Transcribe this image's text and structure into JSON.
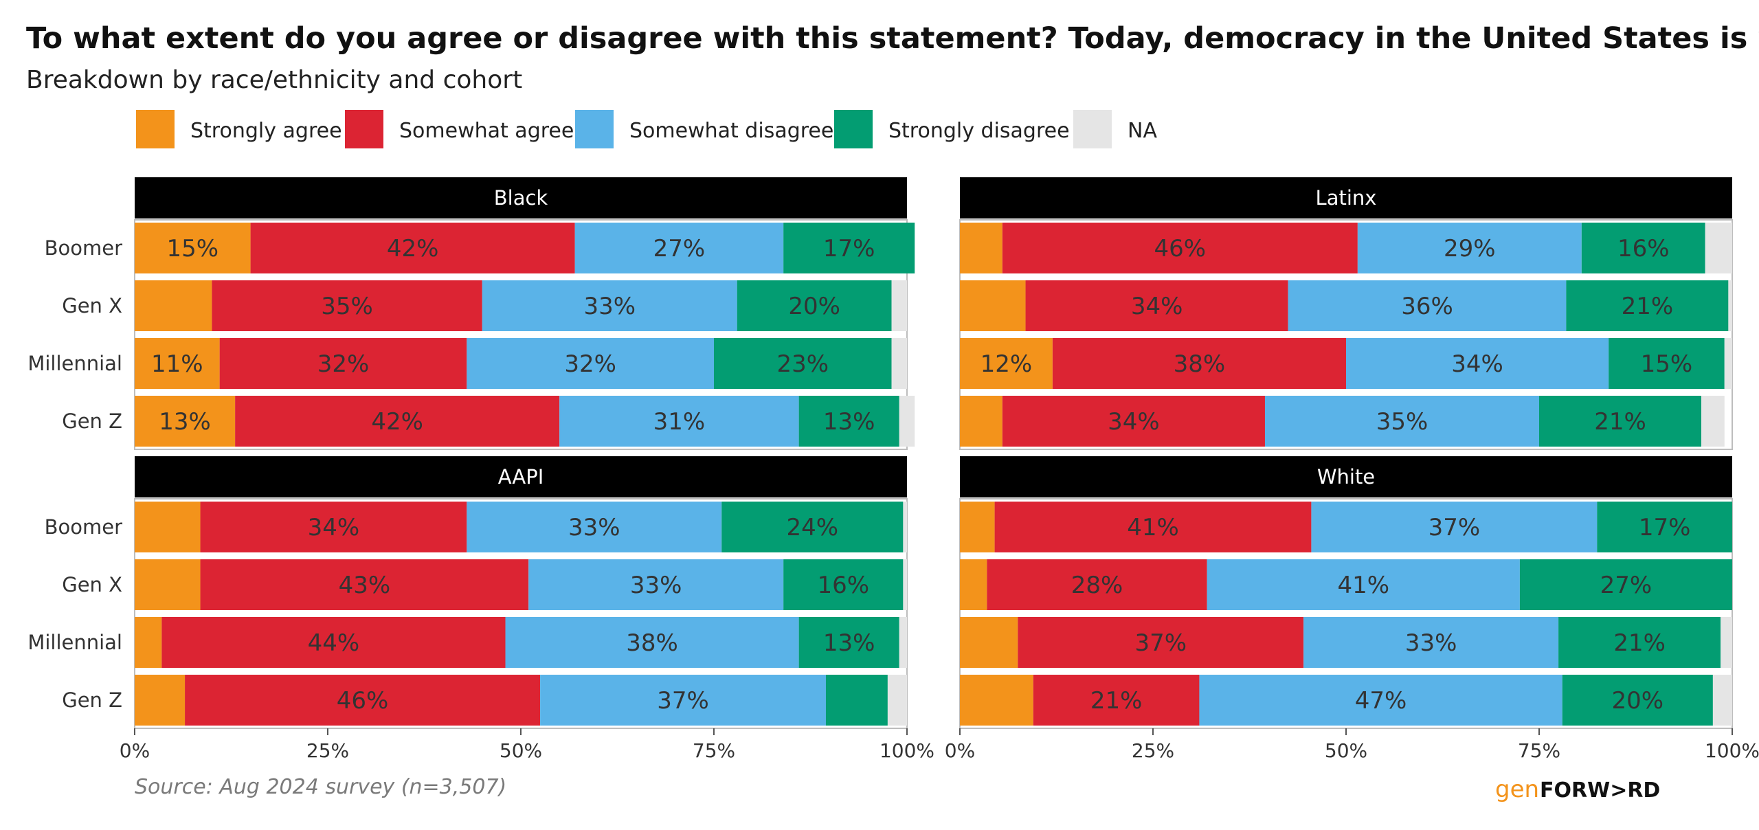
{
  "title": "To what extent do you agree or disagree with this statement? Today, democracy in the United States is working.",
  "subtitle": "Breakdown by race/ethnicity and cohort",
  "caption": "Source: Aug 2024 survey (n=3,507)",
  "logo": {
    "gen": "gen",
    "forward": "FORW>RD"
  },
  "legend": [
    {
      "label": "Strongly agree",
      "color": "#f3931b"
    },
    {
      "label": "Somewhat agree",
      "color": "#dc2433"
    },
    {
      "label": "Somewhat disagree",
      "color": "#5ab3e8"
    },
    {
      "label": "Strongly disagree",
      "color": "#039d72"
    },
    {
      "label": "NA",
      "color": "#e5e5e5"
    }
  ],
  "chart_data": {
    "type": "bar",
    "orientation": "horizontal",
    "stacked": true,
    "xlim": [
      0,
      100
    ],
    "xticks": [
      "0%",
      "25%",
      "50%",
      "75%",
      "100%"
    ],
    "categories": [
      "Boomer",
      "Gen X",
      "Millennial",
      "Gen Z"
    ],
    "series_names": [
      "Strongly agree",
      "Somewhat agree",
      "Somewhat disagree",
      "Strongly disagree",
      "NA"
    ],
    "facets": [
      {
        "name": "Black",
        "values": [
          [
            15,
            42,
            27,
            17,
            0
          ],
          [
            10,
            35,
            33,
            20,
            2
          ],
          [
            11,
            32,
            32,
            23,
            2
          ],
          [
            13,
            42,
            31,
            13,
            2
          ]
        ],
        "labels": [
          [
            "15%",
            "42%",
            "27%",
            "17%",
            ""
          ],
          [
            "",
            "35%",
            "33%",
            "20%",
            ""
          ],
          [
            "11%",
            "32%",
            "32%",
            "23%",
            ""
          ],
          [
            "13%",
            "42%",
            "31%",
            "13%",
            ""
          ]
        ]
      },
      {
        "name": "Latinx",
        "values": [
          [
            5.5,
            46,
            29,
            16,
            3.5
          ],
          [
            8.5,
            34,
            36,
            21,
            0.5
          ],
          [
            12,
            38,
            34,
            15,
            1
          ],
          [
            5.5,
            34,
            35.5,
            21,
            3
          ]
        ],
        "labels": [
          [
            "",
            "46%",
            "29%",
            "16%",
            ""
          ],
          [
            "",
            "34%",
            "36%",
            "21%",
            ""
          ],
          [
            "12%",
            "38%",
            "34%",
            "15%",
            ""
          ],
          [
            "",
            "34%",
            "35%",
            "21%",
            ""
          ]
        ]
      },
      {
        "name": "AAPI",
        "values": [
          [
            8.5,
            34.5,
            33,
            23.5,
            0.5
          ],
          [
            8.5,
            42.5,
            33,
            15.5,
            0.5
          ],
          [
            3.5,
            44.5,
            38,
            13,
            1
          ],
          [
            6.5,
            46,
            37,
            8,
            2.5
          ]
        ],
        "labels": [
          [
            "",
            "34%",
            "33%",
            "24%",
            ""
          ],
          [
            "",
            "43%",
            "33%",
            "16%",
            ""
          ],
          [
            "",
            "44%",
            "38%",
            "13%",
            ""
          ],
          [
            "",
            "46%",
            "37%",
            "",
            ""
          ]
        ]
      },
      {
        "name": "White",
        "values": [
          [
            4.5,
            41,
            37,
            17.5,
            0
          ],
          [
            3.5,
            28.5,
            40.5,
            27.5,
            0
          ],
          [
            7.5,
            37,
            33,
            21,
            1.5
          ],
          [
            9.5,
            21.5,
            47,
            19.5,
            2.5
          ]
        ],
        "labels": [
          [
            "",
            "41%",
            "37%",
            "17%",
            ""
          ],
          [
            "",
            "28%",
            "41%",
            "27%",
            ""
          ],
          [
            "",
            "37%",
            "33%",
            "21%",
            ""
          ],
          [
            "",
            "21%",
            "47%",
            "20%",
            ""
          ]
        ]
      }
    ]
  }
}
